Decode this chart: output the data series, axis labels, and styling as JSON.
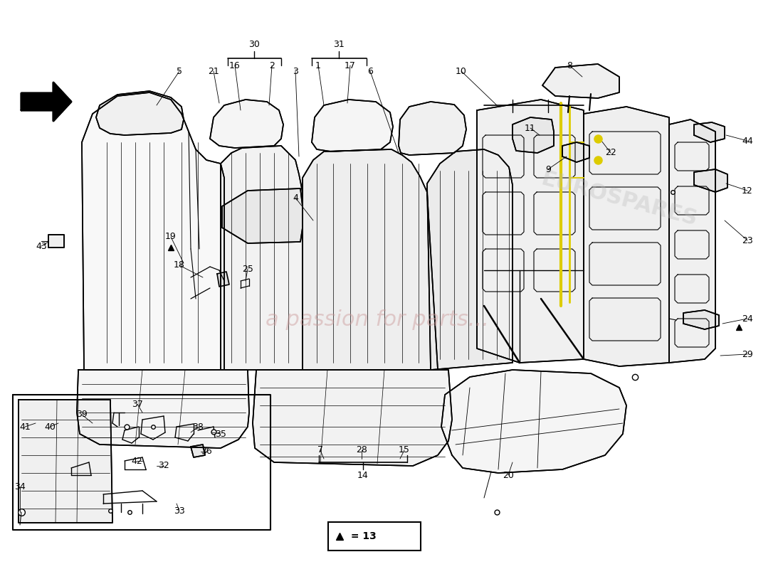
{
  "background_color": "#ffffff",
  "line_color": "#000000",
  "watermark_text": "a passion for parts...",
  "watermark_color": "#cc9999",
  "logo_text": "EUROSPARES",
  "logo_color": "#bbbbbb",
  "lw_main": 1.2,
  "lw_detail": 0.7,
  "lw_thick": 1.8,
  "label_fontsize": 9,
  "group_label_fontsize": 9
}
